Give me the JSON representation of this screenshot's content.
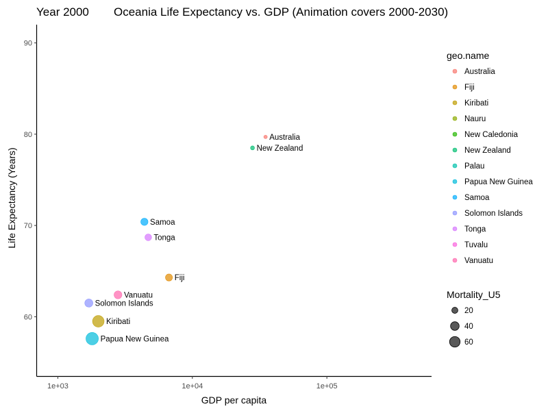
{
  "chart_data": {
    "type": "scatter",
    "year_label": "Year 2000",
    "title": "Oceania Life Expectancy vs. GDP (Animation covers 2000-2030)",
    "xlabel": "GDP per capita",
    "ylabel": "Life Expectancy (Years)",
    "x_scale": "log10",
    "xlim": [
      700,
      600000
    ],
    "ylim": [
      53.5,
      92
    ],
    "x_ticks": [
      1000,
      10000,
      100000
    ],
    "x_tick_labels": [
      "1e+03",
      "1e+04",
      "1e+05"
    ],
    "y_ticks": [
      60,
      70,
      80,
      90
    ],
    "y_tick_labels": [
      "60",
      "70",
      "80",
      "90"
    ],
    "grid": false,
    "legend_color_title": "geo.name",
    "legend_size_title": "Mortality_U5",
    "legend_placement": "right",
    "size_legend": [
      {
        "label": "20",
        "value": 20
      },
      {
        "label": "40",
        "value": 40
      },
      {
        "label": "60",
        "value": 60
      }
    ],
    "countries": [
      {
        "name": "Australia",
        "color": "#F8766D"
      },
      {
        "name": "Fiji",
        "color": "#E18A00"
      },
      {
        "name": "Kiribati",
        "color": "#BE9C00"
      },
      {
        "name": "Nauru",
        "color": "#8CAB00"
      },
      {
        "name": "New Caledonia",
        "color": "#24B700"
      },
      {
        "name": "New Zealand",
        "color": "#00BE70"
      },
      {
        "name": "Palau",
        "color": "#00C1AB"
      },
      {
        "name": "Papua New Guinea",
        "color": "#00BBDA"
      },
      {
        "name": "Samoa",
        "color": "#00ACFC"
      },
      {
        "name": "Solomon Islands",
        "color": "#8B93FF"
      },
      {
        "name": "Tonga",
        "color": "#D575FE"
      },
      {
        "name": "Tuvalu",
        "color": "#F962DD"
      },
      {
        "name": "Vanuatu",
        "color": "#FF65AC"
      }
    ],
    "points": [
      {
        "name": "Australia",
        "gdp": 35000,
        "life_expectancy": 79.7,
        "mortality_u5": 6
      },
      {
        "name": "New Zealand",
        "gdp": 28000,
        "life_expectancy": 78.5,
        "mortality_u5": 8
      },
      {
        "name": "Samoa",
        "gdp": 4400,
        "life_expectancy": 70.4,
        "mortality_u5": 25
      },
      {
        "name": "Tonga",
        "gdp": 4700,
        "life_expectancy": 68.7,
        "mortality_u5": 22
      },
      {
        "name": "Fiji",
        "gdp": 6700,
        "life_expectancy": 64.3,
        "mortality_u5": 24
      },
      {
        "name": "Vanuatu",
        "gdp": 2800,
        "life_expectancy": 62.4,
        "mortality_u5": 30
      },
      {
        "name": "Solomon Islands",
        "gdp": 1700,
        "life_expectancy": 61.5,
        "mortality_u5": 32
      },
      {
        "name": "Kiribati",
        "gdp": 2000,
        "life_expectancy": 59.5,
        "mortality_u5": 65
      },
      {
        "name": "Papua New Guinea",
        "gdp": 1800,
        "life_expectancy": 57.6,
        "mortality_u5": 75
      }
    ]
  }
}
